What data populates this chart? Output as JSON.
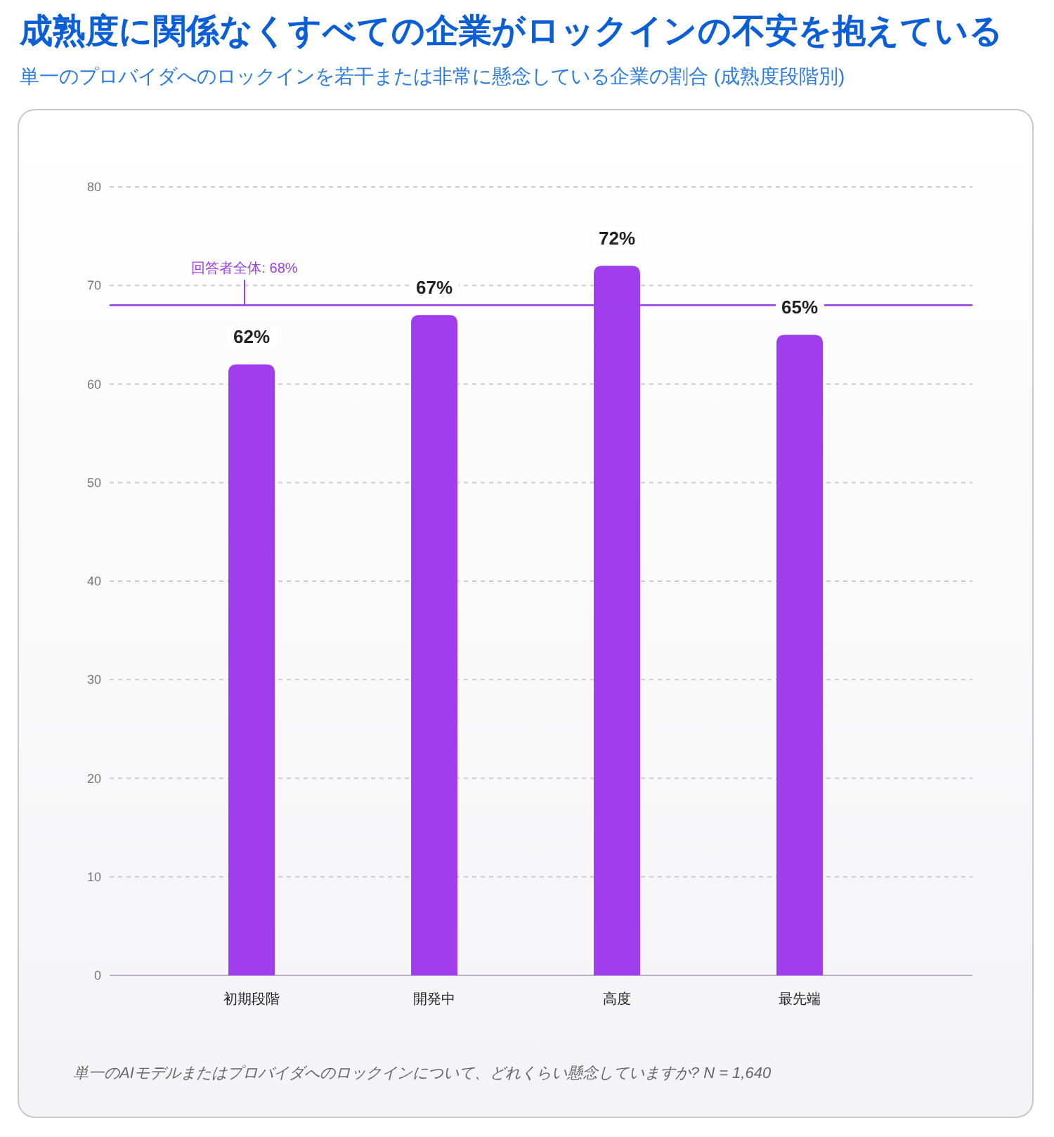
{
  "chart_data": {
    "type": "bar",
    "title": "成熟度に関係なくすべての企業がロックインの不安を抱えている",
    "subtitle": "単一のプロバイダへのロックインを若干または非常に懸念している企業の割合 (成熟度段階別)",
    "categories": [
      "初期段階",
      "開発中",
      "高度",
      "最先端"
    ],
    "values": [
      62,
      67,
      72,
      65
    ],
    "value_labels": [
      "62%",
      "67%",
      "72%",
      "65%"
    ],
    "color": "#a03ded",
    "ylim": [
      0,
      80
    ],
    "yticks": [
      0,
      10,
      20,
      30,
      40,
      50,
      60,
      70,
      80
    ],
    "grid": "y",
    "ref_lines": [
      {
        "axis": "y",
        "value": 68,
        "label": "回答者全体: 68%",
        "color": "#9b3de8"
      }
    ],
    "annotations": [
      "単一のAIモデルまたはプロバイダへのロックインについて、どれくらい懸念していますか? N = 1,640"
    ]
  }
}
